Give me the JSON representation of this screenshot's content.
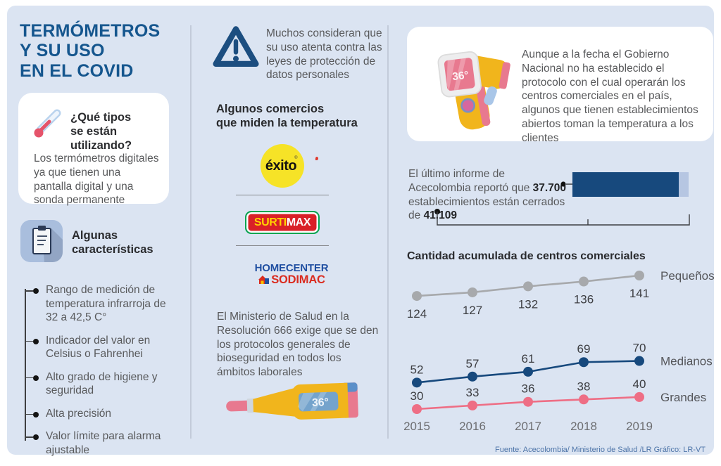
{
  "colors": {
    "panel_bg": "#dbe4f2",
    "title_blue": "#15568e",
    "dark_blue": "#17497d",
    "bar_remainder": "#b6c6e2",
    "pequenos_gray": "#a7a9ac",
    "grandes_pink": "#ee6e85",
    "exito_yellow": "#f6e327",
    "surtimax_red": "#d92027",
    "surtimax_green": "#00a551",
    "homecenter_blue": "#1f4ea1",
    "sodimac_red": "#da2b1f",
    "body_gray": "#58595b"
  },
  "header": {
    "title_line1": "TERMÓMETROS",
    "title_line2": "Y SU USO",
    "title_line3": "EN EL COVID"
  },
  "left": {
    "question_card": {
      "heading_line1": "¿Qué tipos",
      "heading_line2": "se están utilizando?",
      "body": "Los termómetros digitales ya que tienen una pantalla digital y una sonda permanente"
    },
    "features": {
      "heading": "Algunas características",
      "items": [
        "Rango de medición de temperatura infrarroja de 32 a 42,5 C°",
        "Indicador del valor en Celsius o Fahrenhei",
        "Alto grado de higiene y seguridad",
        "Alta precisión",
        "Valor límite para alarma ajustable"
      ]
    }
  },
  "middle": {
    "warning_text": "Muchos consideran que su uso atenta contra las leyes de protección de datos personales",
    "stores_heading_line1": "Algunos comercios",
    "stores_heading_line2": "que miden la temperatura",
    "logos": {
      "exito": "éxito",
      "exito_mark": "®",
      "surtimax_part1": "SURTI",
      "surtimax_part2": "MAX",
      "homecenter": "HOMECENTER",
      "sodimac": "SODIMAC"
    },
    "ministry_text": "El Ministerio de Salud en la Resolución 666 exige que se den los protocolos generales de bioseguridad en todos los ámbitos laborales",
    "thermometer_display": "36°"
  },
  "right": {
    "gov_text": "Aunque a la fecha el Gobierno Nacional no ha establecido el protocolo con el cual operarán los centros comerciales en el país, algunos que tienen establecimientos abiertos toman la temperatura a los clientes",
    "gun_display": "36°",
    "closed_stat": {
      "part1": "El último informe de Acecolombia reportó que ",
      "closed_label": "37.700",
      "part2": " establecimientos están cerrados de ",
      "total_label": "41.109",
      "closed_value": 37700,
      "total_value": 41109
    }
  },
  "chart_data": {
    "type": "line",
    "title": "Cantidad acumulada de centros comerciales",
    "x": [
      "2015",
      "2016",
      "2017",
      "2018",
      "2019"
    ],
    "series": [
      {
        "name": "Pequeños",
        "values": [
          124,
          127,
          132,
          136,
          141
        ],
        "color": "#a7a9ac",
        "label_position": "below"
      },
      {
        "name": "Medianos",
        "values": [
          52,
          57,
          61,
          69,
          70
        ],
        "color": "#17497d",
        "label_position": "above"
      },
      {
        "name": "Grandes",
        "values": [
          30,
          33,
          36,
          38,
          40
        ],
        "color": "#ee6e85",
        "label_position": "above"
      }
    ],
    "ylim": [
      30,
      141
    ],
    "grid": false,
    "legend_position": "right"
  },
  "footer": {
    "source": "Fuente: Acecolombia/ Ministerio de Salud /LR  Gráfico: LR-VT"
  }
}
